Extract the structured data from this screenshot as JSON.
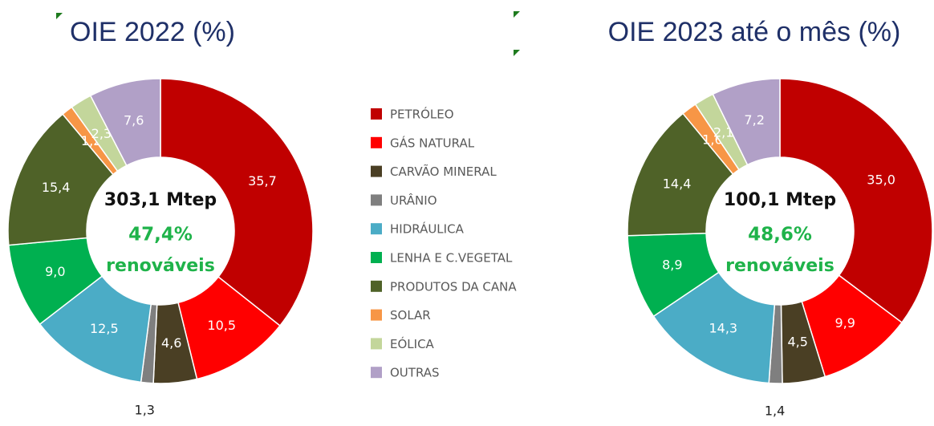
{
  "chart_data": [
    {
      "type": "donut",
      "title": "OIE 2022 (%)",
      "categories": [
        "PETRÓLEO",
        "GÁS NATURAL",
        "CARVÃO MINERAL",
        "URÂNIO",
        "HIDRÁULICA",
        "LENHA E C.VEGETAL",
        "PRODUTOS DA CANA",
        "SOLAR",
        "EÓLICA",
        "OUTRAS"
      ],
      "values": [
        35.7,
        10.5,
        4.6,
        1.3,
        12.5,
        9.0,
        15.4,
        1.2,
        2.3,
        7.6
      ],
      "value_labels": [
        "35,7",
        "10,5",
        "4,6",
        "1,3",
        "12,5",
        "9,0",
        "15,4",
        "1,2",
        "2,3",
        "7,6"
      ],
      "colors": [
        "#c00000",
        "#ff0000",
        "#4a3f24",
        "#7f7f7f",
        "#4bacc6",
        "#00b050",
        "#4f6228",
        "#f79646",
        "#c3d69b",
        "#b1a0c7"
      ],
      "center_total": "303,1 Mtep",
      "center_share": "47,4%",
      "center_note": "renováveis"
    },
    {
      "type": "donut",
      "title": "OIE 2023 até o mês (%)",
      "categories": [
        "PETRÓLEO",
        "GÁS NATURAL",
        "CARVÃO MINERAL",
        "URÂNIO",
        "HIDRÁULICA",
        "LENHA E C.VEGETAL",
        "PRODUTOS DA CANA",
        "SOLAR",
        "EÓLICA",
        "OUTRAS"
      ],
      "values": [
        35.0,
        9.9,
        4.5,
        1.4,
        14.3,
        8.9,
        14.4,
        1.6,
        2.1,
        7.2
      ],
      "value_labels": [
        "35,0",
        "9,9",
        "4,5",
        "1,4",
        "14,3",
        "8,9",
        "14,4",
        "1,6",
        "2,1",
        "7,2"
      ],
      "colors": [
        "#c00000",
        "#ff0000",
        "#4a3f24",
        "#7f7f7f",
        "#4bacc6",
        "#00b050",
        "#4f6228",
        "#f79646",
        "#c3d69b",
        "#b1a0c7"
      ],
      "center_total": "100,1 Mtep",
      "center_share": "48,6%",
      "center_note": "renováveis"
    }
  ]
}
